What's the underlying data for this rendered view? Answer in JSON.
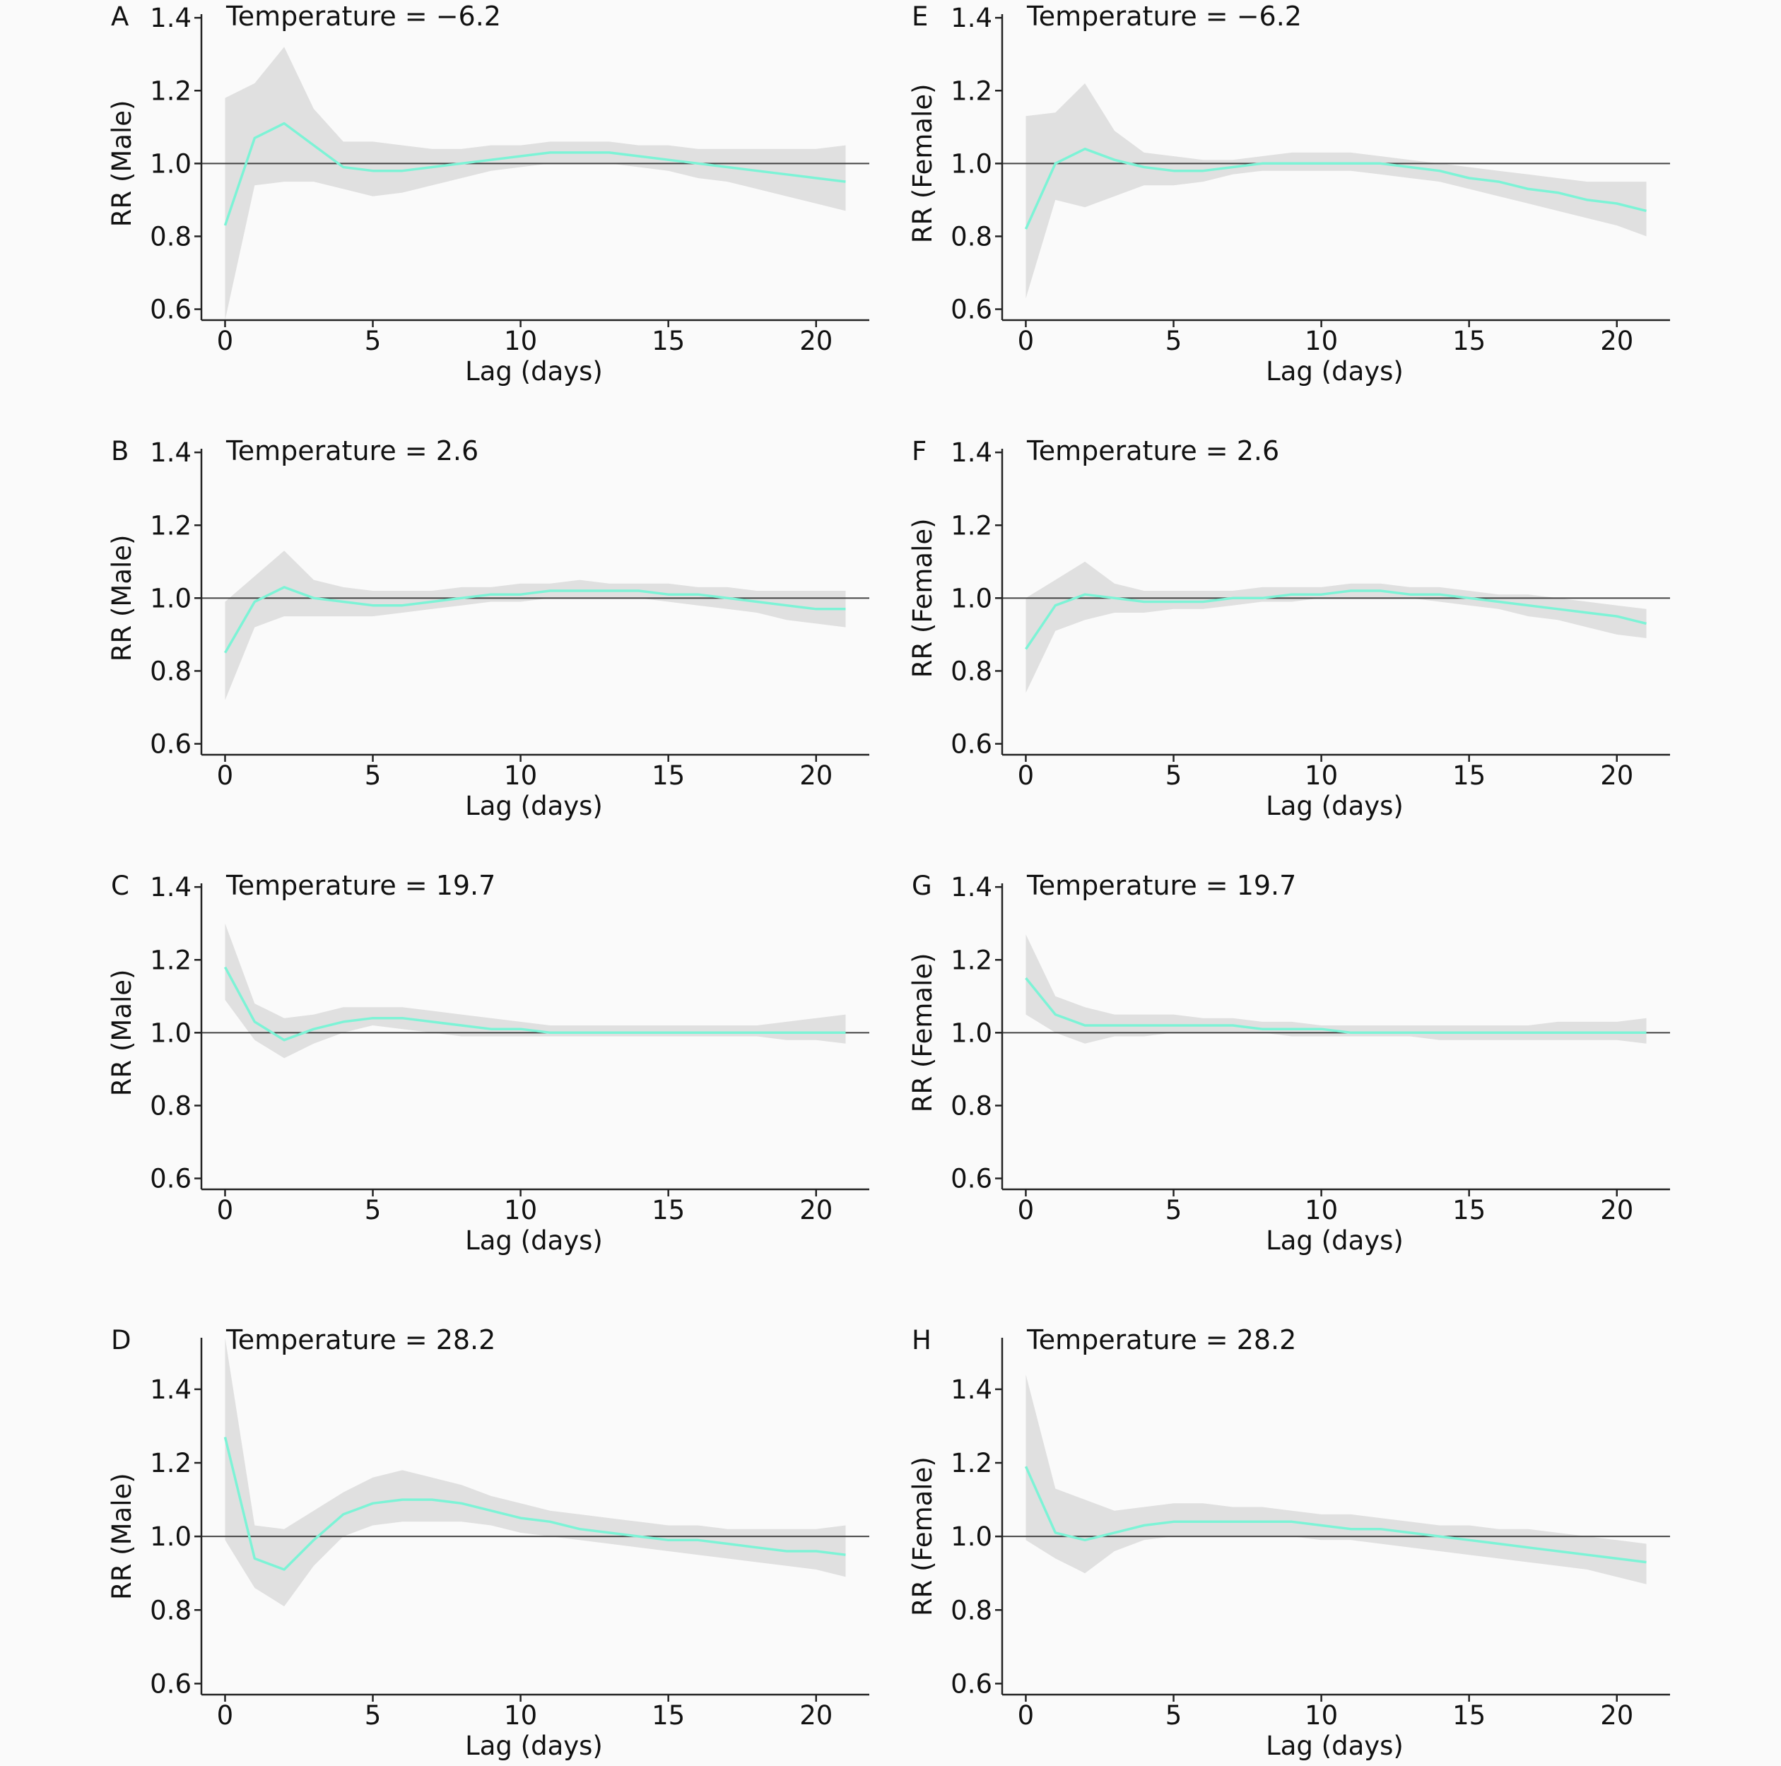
{
  "figure": {
    "background": "#fafafa"
  },
  "style": {
    "line_color": "#7df3d6",
    "band_color": "#e0e0e0",
    "ref_color": "#444444",
    "axis_color": "#222222"
  },
  "chart_data": [
    {
      "id": "A",
      "type": "line",
      "panel_letter": "A",
      "title": "Temperature = −6.2",
      "ylabel": "RR (Male)",
      "xlabel": "Lag (days)",
      "xlim": [
        -0.8,
        21.8
      ],
      "ylim": [
        0.57,
        1.41
      ],
      "xticks": [
        0,
        5,
        10,
        15,
        20
      ],
      "xtick_labels": [
        "0",
        "5",
        "10",
        "15",
        "20"
      ],
      "yticks": [
        0.6,
        0.8,
        1.0,
        1.2,
        1.4
      ],
      "ytick_labels": [
        "0.6",
        "0.8",
        "1.0",
        "1.2",
        "1.4"
      ],
      "reference_line": 1.0,
      "x": [
        0,
        1,
        2,
        3,
        4,
        5,
        6,
        7,
        8,
        9,
        10,
        11,
        12,
        13,
        14,
        15,
        16,
        17,
        18,
        19,
        20,
        21
      ],
      "y": [
        0.83,
        1.07,
        1.11,
        1.05,
        0.99,
        0.98,
        0.98,
        0.99,
        1.0,
        1.01,
        1.02,
        1.03,
        1.03,
        1.03,
        1.02,
        1.01,
        1.0,
        0.99,
        0.98,
        0.97,
        0.96,
        0.95
      ],
      "lower": [
        0.57,
        0.94,
        0.95,
        0.95,
        0.93,
        0.91,
        0.92,
        0.94,
        0.96,
        0.98,
        0.99,
        1.0,
        1.0,
        1.0,
        0.99,
        0.98,
        0.96,
        0.95,
        0.93,
        0.91,
        0.89,
        0.87
      ],
      "upper": [
        1.18,
        1.22,
        1.32,
        1.15,
        1.06,
        1.06,
        1.05,
        1.04,
        1.04,
        1.05,
        1.05,
        1.06,
        1.06,
        1.06,
        1.05,
        1.05,
        1.04,
        1.04,
        1.04,
        1.04,
        1.04,
        1.05
      ]
    },
    {
      "id": "B",
      "type": "line",
      "panel_letter": "B",
      "title": "Temperature = 2.6",
      "ylabel": "RR (Male)",
      "xlabel": "Lag (days)",
      "xlim": [
        -0.8,
        21.8
      ],
      "ylim": [
        0.57,
        1.41
      ],
      "xticks": [
        0,
        5,
        10,
        15,
        20
      ],
      "xtick_labels": [
        "0",
        "5",
        "10",
        "15",
        "20"
      ],
      "yticks": [
        0.6,
        0.8,
        1.0,
        1.2,
        1.4
      ],
      "ytick_labels": [
        "0.6",
        "0.8",
        "1.0",
        "1.2",
        "1.4"
      ],
      "reference_line": 1.0,
      "x": [
        0,
        1,
        2,
        3,
        4,
        5,
        6,
        7,
        8,
        9,
        10,
        11,
        12,
        13,
        14,
        15,
        16,
        17,
        18,
        19,
        20,
        21
      ],
      "y": [
        0.85,
        0.99,
        1.03,
        1.0,
        0.99,
        0.98,
        0.98,
        0.99,
        1.0,
        1.01,
        1.01,
        1.02,
        1.02,
        1.02,
        1.02,
        1.01,
        1.01,
        1.0,
        0.99,
        0.98,
        0.97,
        0.97
      ],
      "lower": [
        0.72,
        0.92,
        0.95,
        0.95,
        0.95,
        0.95,
        0.96,
        0.97,
        0.98,
        0.99,
        0.99,
        1.0,
        1.0,
        1.0,
        1.0,
        0.99,
        0.98,
        0.97,
        0.96,
        0.94,
        0.93,
        0.92
      ],
      "upper": [
        0.99,
        1.06,
        1.13,
        1.05,
        1.03,
        1.02,
        1.02,
        1.02,
        1.03,
        1.03,
        1.04,
        1.04,
        1.05,
        1.04,
        1.04,
        1.04,
        1.03,
        1.03,
        1.02,
        1.02,
        1.02,
        1.02
      ]
    },
    {
      "id": "C",
      "type": "line",
      "panel_letter": "C",
      "title": "Temperature = 19.7",
      "ylabel": "RR (Male)",
      "xlabel": "Lag (days)",
      "xlim": [
        -0.8,
        21.8
      ],
      "ylim": [
        0.57,
        1.41
      ],
      "xticks": [
        0,
        5,
        10,
        15,
        20
      ],
      "xtick_labels": [
        "0",
        "5",
        "10",
        "15",
        "20"
      ],
      "yticks": [
        0.6,
        0.8,
        1.0,
        1.2,
        1.4
      ],
      "ytick_labels": [
        "0.6",
        "0.8",
        "1.0",
        "1.2",
        "1.4"
      ],
      "reference_line": 1.0,
      "x": [
        0,
        1,
        2,
        3,
        4,
        5,
        6,
        7,
        8,
        9,
        10,
        11,
        12,
        13,
        14,
        15,
        16,
        17,
        18,
        19,
        20,
        21
      ],
      "y": [
        1.18,
        1.03,
        0.98,
        1.01,
        1.03,
        1.04,
        1.04,
        1.03,
        1.02,
        1.01,
        1.01,
        1.0,
        1.0,
        1.0,
        1.0,
        1.0,
        1.0,
        1.0,
        1.0,
        1.0,
        1.0,
        1.0
      ],
      "lower": [
        1.09,
        0.98,
        0.93,
        0.97,
        1.0,
        1.02,
        1.01,
        1.0,
        0.99,
        0.99,
        0.99,
        0.99,
        0.99,
        0.99,
        0.99,
        0.99,
        0.99,
        0.99,
        0.99,
        0.98,
        0.98,
        0.97
      ],
      "upper": [
        1.3,
        1.08,
        1.04,
        1.05,
        1.07,
        1.07,
        1.07,
        1.06,
        1.05,
        1.04,
        1.03,
        1.02,
        1.02,
        1.02,
        1.02,
        1.02,
        1.02,
        1.02,
        1.02,
        1.03,
        1.04,
        1.05
      ]
    },
    {
      "id": "D",
      "type": "line",
      "panel_letter": "D",
      "title": "Temperature = 28.2",
      "ylabel": "RR (Male)",
      "xlabel": "Lag (days)",
      "xlim": [
        -0.8,
        21.8
      ],
      "ylim": [
        0.57,
        1.54
      ],
      "xticks": [
        0,
        5,
        10,
        15,
        20
      ],
      "xtick_labels": [
        "0",
        "5",
        "10",
        "15",
        "20"
      ],
      "yticks": [
        0.6,
        0.8,
        1.0,
        1.2,
        1.4
      ],
      "ytick_labels": [
        "0.6",
        "0.8",
        "1.0",
        "1.2",
        "1.4"
      ],
      "reference_line": 1.0,
      "x": [
        0,
        1,
        2,
        3,
        4,
        5,
        6,
        7,
        8,
        9,
        10,
        11,
        12,
        13,
        14,
        15,
        16,
        17,
        18,
        19,
        20,
        21
      ],
      "y": [
        1.27,
        0.94,
        0.91,
        0.99,
        1.06,
        1.09,
        1.1,
        1.1,
        1.09,
        1.07,
        1.05,
        1.04,
        1.02,
        1.01,
        1.0,
        0.99,
        0.99,
        0.98,
        0.97,
        0.96,
        0.96,
        0.95
      ],
      "lower": [
        0.99,
        0.86,
        0.81,
        0.92,
        1.0,
        1.03,
        1.04,
        1.04,
        1.04,
        1.03,
        1.01,
        1.0,
        0.99,
        0.98,
        0.97,
        0.96,
        0.95,
        0.94,
        0.93,
        0.92,
        0.91,
        0.89
      ],
      "upper": [
        1.54,
        1.03,
        1.02,
        1.07,
        1.12,
        1.16,
        1.18,
        1.16,
        1.14,
        1.11,
        1.09,
        1.07,
        1.06,
        1.05,
        1.04,
        1.03,
        1.03,
        1.02,
        1.02,
        1.02,
        1.02,
        1.03
      ]
    },
    {
      "id": "E",
      "type": "line",
      "panel_letter": "E",
      "title": "Temperature = −6.2",
      "ylabel": "RR (Female)",
      "xlabel": "Lag (days)",
      "xlim": [
        -0.8,
        21.8
      ],
      "ylim": [
        0.57,
        1.41
      ],
      "xticks": [
        0,
        5,
        10,
        15,
        20
      ],
      "xtick_labels": [
        "0",
        "5",
        "10",
        "15",
        "20"
      ],
      "yticks": [
        0.6,
        0.8,
        1.0,
        1.2,
        1.4
      ],
      "ytick_labels": [
        "0.6",
        "0.8",
        "1.0",
        "1.2",
        "1.4"
      ],
      "reference_line": 1.0,
      "x": [
        0,
        1,
        2,
        3,
        4,
        5,
        6,
        7,
        8,
        9,
        10,
        11,
        12,
        13,
        14,
        15,
        16,
        17,
        18,
        19,
        20,
        21
      ],
      "y": [
        0.82,
        1.0,
        1.04,
        1.01,
        0.99,
        0.98,
        0.98,
        0.99,
        1.0,
        1.0,
        1.0,
        1.0,
        1.0,
        0.99,
        0.98,
        0.96,
        0.95,
        0.93,
        0.92,
        0.9,
        0.89,
        0.87
      ],
      "lower": [
        0.63,
        0.9,
        0.88,
        0.91,
        0.94,
        0.94,
        0.95,
        0.97,
        0.98,
        0.98,
        0.98,
        0.98,
        0.97,
        0.96,
        0.95,
        0.93,
        0.91,
        0.89,
        0.87,
        0.85,
        0.83,
        0.8
      ],
      "upper": [
        1.13,
        1.14,
        1.22,
        1.09,
        1.03,
        1.02,
        1.01,
        1.01,
        1.02,
        1.03,
        1.03,
        1.03,
        1.02,
        1.01,
        1.0,
        0.99,
        0.98,
        0.97,
        0.96,
        0.95,
        0.95,
        0.95
      ]
    },
    {
      "id": "F",
      "type": "line",
      "panel_letter": "F",
      "title": "Temperature = 2.6",
      "ylabel": "RR (Female)",
      "xlabel": "Lag (days)",
      "xlim": [
        -0.8,
        21.8
      ],
      "ylim": [
        0.57,
        1.41
      ],
      "xticks": [
        0,
        5,
        10,
        15,
        20
      ],
      "xtick_labels": [
        "0",
        "5",
        "10",
        "15",
        "20"
      ],
      "yticks": [
        0.6,
        0.8,
        1.0,
        1.2,
        1.4
      ],
      "ytick_labels": [
        "0.6",
        "0.8",
        "1.0",
        "1.2",
        "1.4"
      ],
      "reference_line": 1.0,
      "x": [
        0,
        1,
        2,
        3,
        4,
        5,
        6,
        7,
        8,
        9,
        10,
        11,
        12,
        13,
        14,
        15,
        16,
        17,
        18,
        19,
        20,
        21
      ],
      "y": [
        0.86,
        0.98,
        1.01,
        1.0,
        0.99,
        0.99,
        0.99,
        1.0,
        1.0,
        1.01,
        1.01,
        1.02,
        1.02,
        1.01,
        1.01,
        1.0,
        0.99,
        0.98,
        0.97,
        0.96,
        0.95,
        0.93
      ],
      "lower": [
        0.74,
        0.91,
        0.94,
        0.96,
        0.96,
        0.97,
        0.97,
        0.98,
        0.99,
        0.99,
        1.0,
        1.0,
        1.0,
        1.0,
        0.99,
        0.98,
        0.97,
        0.95,
        0.94,
        0.92,
        0.9,
        0.89
      ],
      "upper": [
        1.0,
        1.05,
        1.1,
        1.04,
        1.02,
        1.02,
        1.02,
        1.02,
        1.03,
        1.03,
        1.03,
        1.04,
        1.04,
        1.03,
        1.03,
        1.02,
        1.01,
        1.01,
        1.0,
        0.99,
        0.98,
        0.97
      ]
    },
    {
      "id": "G",
      "type": "line",
      "panel_letter": "G",
      "title": "Temperature = 19.7",
      "ylabel": "RR (Female)",
      "xlabel": "Lag (days)",
      "xlim": [
        -0.8,
        21.8
      ],
      "ylim": [
        0.57,
        1.41
      ],
      "xticks": [
        0,
        5,
        10,
        15,
        20
      ],
      "xtick_labels": [
        "0",
        "5",
        "10",
        "15",
        "20"
      ],
      "yticks": [
        0.6,
        0.8,
        1.0,
        1.2,
        1.4
      ],
      "ytick_labels": [
        "0.6",
        "0.8",
        "1.0",
        "1.2",
        "1.4"
      ],
      "reference_line": 1.0,
      "x": [
        0,
        1,
        2,
        3,
        4,
        5,
        6,
        7,
        8,
        9,
        10,
        11,
        12,
        13,
        14,
        15,
        16,
        17,
        18,
        19,
        20,
        21
      ],
      "y": [
        1.15,
        1.05,
        1.02,
        1.02,
        1.02,
        1.02,
        1.02,
        1.02,
        1.01,
        1.01,
        1.01,
        1.0,
        1.0,
        1.0,
        1.0,
        1.0,
        1.0,
        1.0,
        1.0,
        1.0,
        1.0,
        1.0
      ],
      "lower": [
        1.05,
        1.0,
        0.97,
        0.99,
        0.99,
        1.0,
        1.0,
        1.0,
        1.0,
        0.99,
        0.99,
        0.99,
        0.99,
        0.99,
        0.98,
        0.98,
        0.98,
        0.98,
        0.98,
        0.98,
        0.98,
        0.97
      ],
      "upper": [
        1.27,
        1.1,
        1.07,
        1.05,
        1.05,
        1.05,
        1.04,
        1.04,
        1.03,
        1.03,
        1.02,
        1.02,
        1.02,
        1.02,
        1.02,
        1.02,
        1.02,
        1.02,
        1.03,
        1.03,
        1.03,
        1.04
      ]
    },
    {
      "id": "H",
      "type": "line",
      "panel_letter": "H",
      "title": "Temperature = 28.2",
      "ylabel": "RR (Female)",
      "xlabel": "Lag (days)",
      "xlim": [
        -0.8,
        21.8
      ],
      "ylim": [
        0.57,
        1.54
      ],
      "xticks": [
        0,
        5,
        10,
        15,
        20
      ],
      "xtick_labels": [
        "0",
        "5",
        "10",
        "15",
        "20"
      ],
      "yticks": [
        0.6,
        0.8,
        1.0,
        1.2,
        1.4
      ],
      "ytick_labels": [
        "0.6",
        "0.8",
        "1.0",
        "1.2",
        "1.4"
      ],
      "reference_line": 1.0,
      "x": [
        0,
        1,
        2,
        3,
        4,
        5,
        6,
        7,
        8,
        9,
        10,
        11,
        12,
        13,
        14,
        15,
        16,
        17,
        18,
        19,
        20,
        21
      ],
      "y": [
        1.19,
        1.01,
        0.99,
        1.01,
        1.03,
        1.04,
        1.04,
        1.04,
        1.04,
        1.04,
        1.03,
        1.02,
        1.02,
        1.01,
        1.0,
        0.99,
        0.98,
        0.97,
        0.96,
        0.95,
        0.94,
        0.93
      ],
      "lower": [
        0.99,
        0.94,
        0.9,
        0.96,
        0.99,
        1.0,
        1.0,
        1.0,
        1.0,
        1.0,
        0.99,
        0.99,
        0.98,
        0.97,
        0.96,
        0.95,
        0.94,
        0.93,
        0.92,
        0.91,
        0.89,
        0.87
      ],
      "upper": [
        1.44,
        1.13,
        1.1,
        1.07,
        1.08,
        1.09,
        1.09,
        1.08,
        1.08,
        1.07,
        1.06,
        1.06,
        1.05,
        1.04,
        1.03,
        1.03,
        1.02,
        1.02,
        1.01,
        1.0,
        0.99,
        0.98
      ]
    }
  ]
}
